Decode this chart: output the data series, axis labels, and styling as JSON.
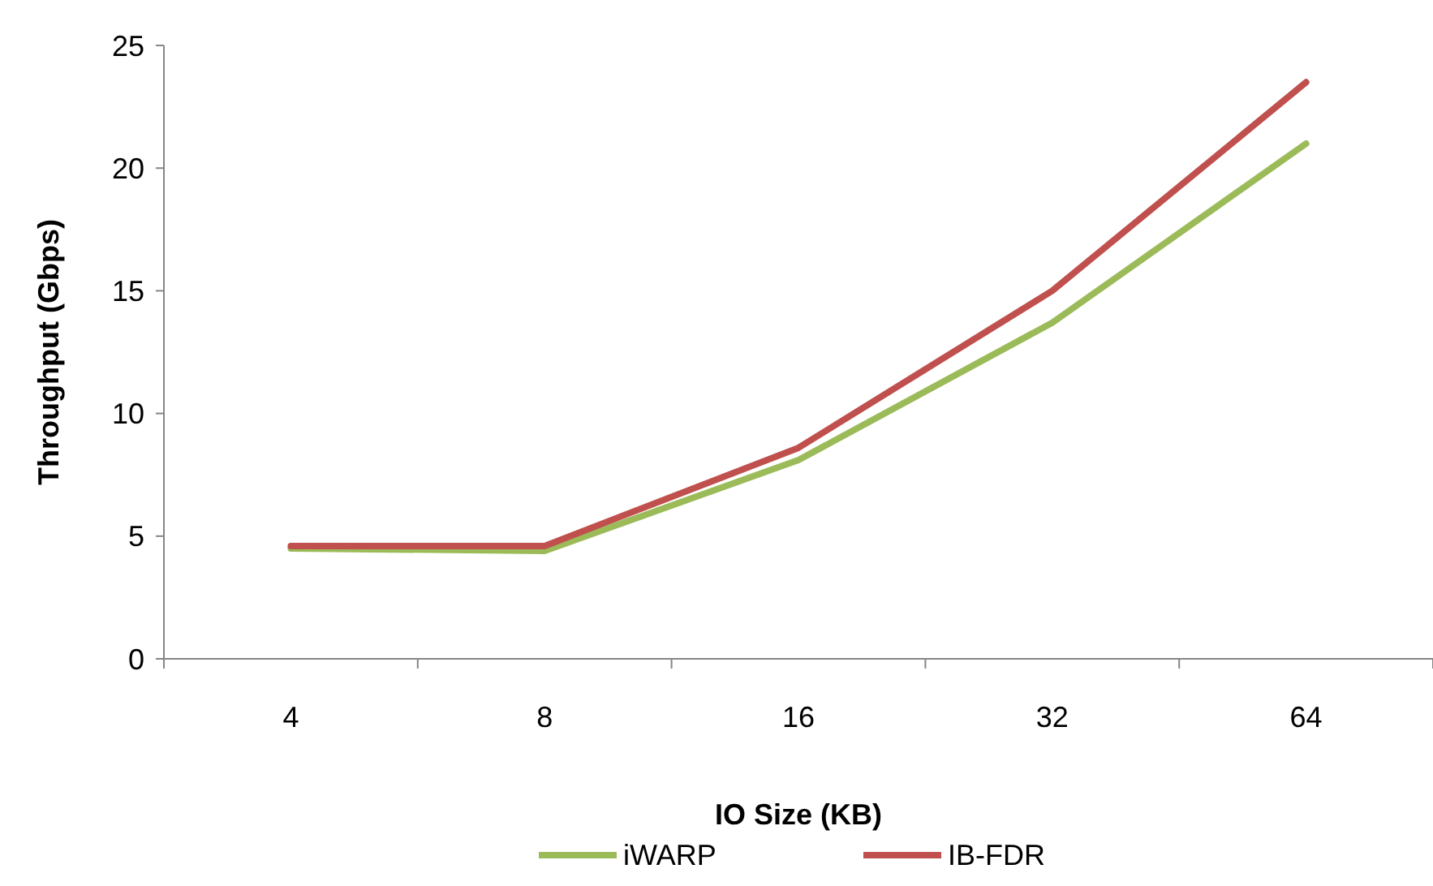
{
  "chart_data": {
    "type": "line",
    "xlabel": "IO Size (KB)",
    "ylabel": "Throughput (Gbps)",
    "categories": [
      "4",
      "8",
      "16",
      "32",
      "64"
    ],
    "series": [
      {
        "name": "iWARP",
        "color": "#9bbb59",
        "values": [
          4.5,
          4.4,
          8.1,
          13.7,
          21.0
        ]
      },
      {
        "name": "IB-FDR",
        "color": "#c0504d",
        "values": [
          4.6,
          4.6,
          8.6,
          15.0,
          23.5
        ]
      }
    ],
    "ylim": [
      0,
      25
    ],
    "yticks": [
      0,
      5,
      10,
      15,
      20,
      25
    ],
    "grid": false,
    "legend": "bottom",
    "marker": "none",
    "line_style": "solid"
  }
}
